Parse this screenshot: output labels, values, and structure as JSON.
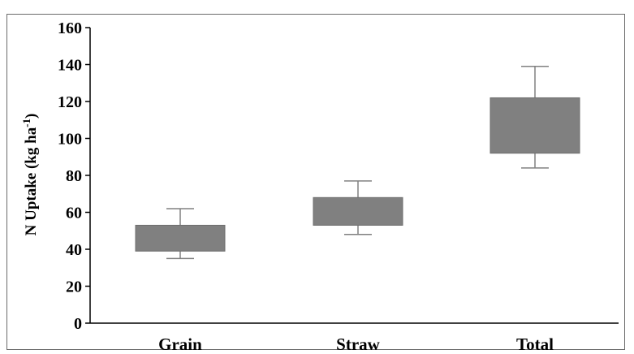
{
  "chart_data": {
    "type": "box",
    "ylabel": "N Uptake (kg ha",
    "ylabel_superscript": "-1",
    "ylabel_suffix": ")",
    "ylim": [
      0,
      160
    ],
    "yticks": [
      0,
      20,
      40,
      60,
      80,
      100,
      120,
      140,
      160
    ],
    "categories": [
      "Grain",
      "Straw",
      "Total"
    ],
    "boxes": [
      {
        "category": "Grain",
        "whisker_low": 35,
        "q1": 39,
        "q3": 53,
        "whisker_high": 62
      },
      {
        "category": "Straw",
        "whisker_low": 48,
        "q1": 53,
        "q3": 68,
        "whisker_high": 77
      },
      {
        "category": "Total",
        "whisker_low": 84,
        "q1": 92,
        "q3": 122,
        "whisker_high": 139
      }
    ],
    "box_color": "#808080",
    "whisker_color": "#808080",
    "axis_color": "#000000",
    "grid": false,
    "legend": "none"
  }
}
